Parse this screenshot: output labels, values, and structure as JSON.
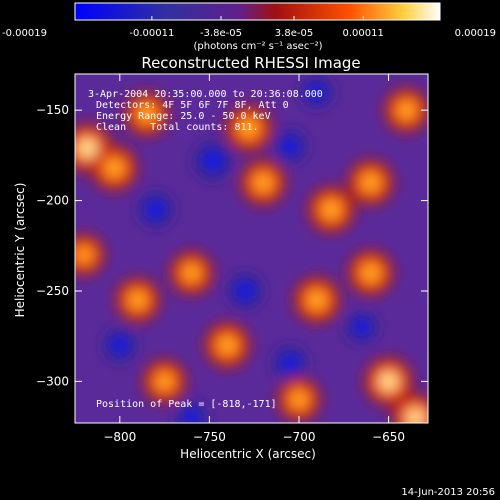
{
  "colorbar": {
    "ticks": [
      "-0.00019",
      "-0.00011",
      "-3.8e-05",
      "3.8e-05",
      "0.00011",
      "0.00019"
    ],
    "units_label": "(photons cm⁻² s⁻¹ asec⁻²)",
    "range": [
      -0.00019,
      0.00019
    ]
  },
  "chart_data": {
    "type": "heatmap",
    "title": "Reconstructed RHESSI Image",
    "xlabel": "Heliocentric X (arcsec)",
    "ylabel": "Heliocentric Y (arcsec)",
    "xlim": [
      -825,
      -628
    ],
    "ylim": [
      -323,
      -130
    ],
    "x_ticks": [
      -800,
      -750,
      -700,
      -650
    ],
    "y_ticks": [
      -150,
      -200,
      -250,
      -300
    ],
    "x_tick_labels": [
      "−800",
      "−750",
      "−700",
      "−650"
    ],
    "y_tick_labels": [
      "−150",
      "−200",
      "−250",
      "−300"
    ],
    "colormap": [
      "#1a1aff",
      "#202080",
      "#3a1a70",
      "#6a2aa8",
      "#b01818",
      "#ff5a00",
      "#ffb830",
      "#fff0a0",
      "#ffffff"
    ],
    "peak": {
      "x": -818,
      "y": -171
    },
    "hot_spots": [
      {
        "x": -818,
        "y": -171,
        "v": 1.0
      },
      {
        "x": -803,
        "y": -182,
        "v": 0.8
      },
      {
        "x": -785,
        "y": -152,
        "v": 0.75
      },
      {
        "x": -728,
        "y": -160,
        "v": 0.85
      },
      {
        "x": -720,
        "y": -190,
        "v": 0.8
      },
      {
        "x": -682,
        "y": -205,
        "v": 0.85
      },
      {
        "x": -660,
        "y": -190,
        "v": 0.8
      },
      {
        "x": -640,
        "y": -150,
        "v": 0.75
      },
      {
        "x": -760,
        "y": -240,
        "v": 0.7
      },
      {
        "x": -790,
        "y": -255,
        "v": 0.75
      },
      {
        "x": -740,
        "y": -280,
        "v": 0.8
      },
      {
        "x": -690,
        "y": -255,
        "v": 0.85
      },
      {
        "x": -660,
        "y": -240,
        "v": 0.8
      },
      {
        "x": -650,
        "y": -300,
        "v": 0.95
      },
      {
        "x": -635,
        "y": -320,
        "v": 0.9
      },
      {
        "x": -775,
        "y": -300,
        "v": 0.7
      },
      {
        "x": -700,
        "y": -310,
        "v": 0.7
      },
      {
        "x": -820,
        "y": -230,
        "v": 0.6
      }
    ],
    "cold_spots": [
      {
        "x": -748,
        "y": -178,
        "v": 1.0
      },
      {
        "x": -780,
        "y": -205,
        "v": 0.8
      },
      {
        "x": -705,
        "y": -170,
        "v": 0.7
      },
      {
        "x": -730,
        "y": -250,
        "v": 0.8
      },
      {
        "x": -705,
        "y": -290,
        "v": 0.75
      },
      {
        "x": -800,
        "y": -280,
        "v": 0.7
      },
      {
        "x": -665,
        "y": -270,
        "v": 0.6
      },
      {
        "x": -690,
        "y": -140,
        "v": 0.6
      },
      {
        "x": -760,
        "y": -320,
        "v": 0.6
      }
    ]
  },
  "overlay": {
    "line1": "3-Apr-2004 20:35:00.000 to 20:36:08.000",
    "line2": "Detectors: 4F 5F 6F 7F 8F, Att 0",
    "line3": "Energy Range: 25.0 - 50.0 keV",
    "line4": "Clean    Total counts: 811.",
    "peak_label": "Position of Peak = [-818,-171]"
  },
  "timestamp": "14-Jun-2013 20:56"
}
